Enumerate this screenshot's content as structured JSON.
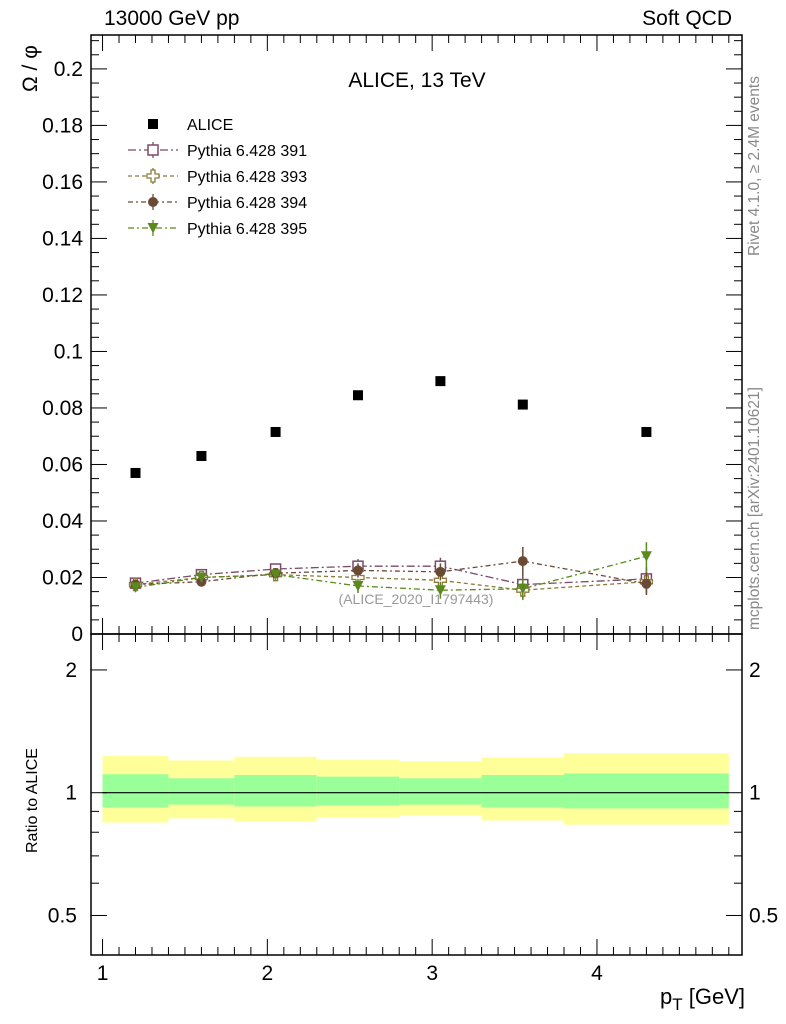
{
  "header": {
    "left": "13000 GeV pp",
    "right": "Soft QCD"
  },
  "side_labels": {
    "rivet": "Rivet 4.1.0, ≥ 2.4M events",
    "mcplots": "mcplots.cern.ch [arXiv:2401.10621]"
  },
  "chart_data": {
    "type": "scatter",
    "title": "ALICE, 13 TeV",
    "watermark": "(ALICE_2020_I1797443)",
    "ylabel": "Ω / φ",
    "xlabel": "p_T [GeV]",
    "xlim": [
      0.93,
      4.88
    ],
    "ylim": [
      0,
      0.212
    ],
    "x_ticks": [
      1,
      2,
      3,
      4
    ],
    "y_ticks": [
      0.02,
      0.04,
      0.06,
      0.08,
      0.1,
      0.12,
      0.14,
      0.16,
      0.18,
      0.2
    ],
    "y_tick_labels": [
      "0.02",
      "0.04",
      "0.06",
      "0.08",
      "0.1",
      "0.12",
      "0.14",
      "0.16",
      "0.18",
      "0.2"
    ],
    "y_zero_label": "0",
    "x": [
      1.2,
      1.6,
      2.05,
      2.55,
      3.05,
      3.55,
      4.3
    ],
    "bin_edges": [
      1.0,
      1.4,
      1.8,
      2.3,
      2.8,
      3.3,
      3.8,
      4.8
    ],
    "series": [
      {
        "name": "ALICE",
        "marker": "square-filled",
        "color": "#000000",
        "values": [
          0.057,
          0.063,
          0.0715,
          0.0845,
          0.0895,
          0.0812,
          0.0715
        ],
        "errors": [
          0,
          0,
          0,
          0,
          0,
          0,
          0
        ]
      },
      {
        "name": "Pythia 6.428 391",
        "marker": "square-open",
        "color": "#7b4a68",
        "values": [
          0.018,
          0.021,
          0.023,
          0.024,
          0.024,
          0.0175,
          0.0195
        ],
        "errors": [
          0.0012,
          0.0015,
          0.0018,
          0.0025,
          0.003,
          0.0035,
          0.004
        ]
      },
      {
        "name": "Pythia 6.428 393",
        "marker": "cross-open",
        "color": "#8c7a3c",
        "values": [
          0.0175,
          0.02,
          0.021,
          0.02,
          0.019,
          0.0155,
          0.0185
        ],
        "errors": [
          0.0012,
          0.0015,
          0.0018,
          0.0025,
          0.003,
          0.0035,
          0.004
        ]
      },
      {
        "name": "Pythia 6.428 394",
        "marker": "circle-filled",
        "color": "#6b4a35",
        "values": [
          0.0175,
          0.0185,
          0.0215,
          0.0225,
          0.022,
          0.0258,
          0.0178
        ],
        "errors": [
          0.0012,
          0.0015,
          0.0018,
          0.0025,
          0.003,
          0.005,
          0.004
        ]
      },
      {
        "name": "Pythia 6.428 395",
        "marker": "triangle-down-filled",
        "color": "#5a8a1e",
        "values": [
          0.0165,
          0.02,
          0.021,
          0.017,
          0.0155,
          0.016,
          0.0275
        ],
        "errors": [
          0.0012,
          0.0015,
          0.0018,
          0.0025,
          0.003,
          0.0035,
          0.005
        ]
      }
    ],
    "ratio_panel": {
      "ylabel": "Ratio to ALICE",
      "ylim": [
        0.4,
        2.45
      ],
      "log_scale": true,
      "y_ticks": [
        0.5,
        1,
        2
      ],
      "y_tick_labels": [
        "0.5",
        "1",
        "2"
      ],
      "reference_line": 1,
      "band_inner": {
        "color": "#99ff99",
        "low": [
          0.92,
          0.935,
          0.925,
          0.93,
          0.935,
          0.92,
          0.915
        ],
        "high": [
          1.11,
          1.085,
          1.105,
          1.095,
          1.085,
          1.105,
          1.115
        ]
      },
      "band_outer": {
        "color": "#ffff99",
        "low": [
          0.845,
          0.865,
          0.85,
          0.87,
          0.88,
          0.855,
          0.835
        ],
        "high": [
          1.23,
          1.2,
          1.225,
          1.205,
          1.195,
          1.22,
          1.25
        ]
      }
    }
  }
}
